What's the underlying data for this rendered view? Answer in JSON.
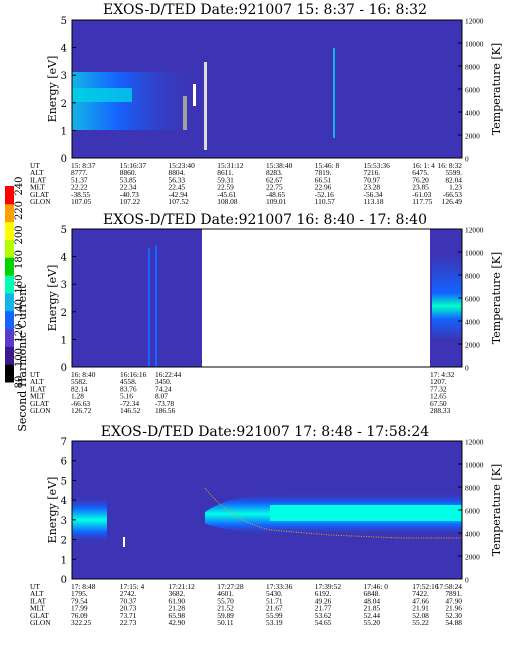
{
  "colors": {
    "background": "#3c34b4",
    "colorbar": [
      "#000000",
      "#3a1a8c",
      "#5a3cc8",
      "#1464ff",
      "#14b4e6",
      "#00ffb4",
      "#00d200",
      "#b4ff00",
      "#ffff00",
      "#ffa000",
      "#ff0000"
    ]
  },
  "colorbar": {
    "label": "Second Harmonic Current",
    "ticks": [
      "80",
      "100",
      "120",
      "140",
      "160",
      "180",
      "200",
      "220",
      "240"
    ]
  },
  "chart_data": [
    {
      "type": "heatmap",
      "title": "EXOS-D/TED   Date:921007  15: 8:37 - 16: 8:32",
      "ylabel": "Energy [eV]",
      "y2label": "Temperature [K]",
      "ylim": [
        0,
        5
      ],
      "y2lim": [
        0,
        12000
      ],
      "yticks": [
        "0",
        "1",
        "2",
        "3",
        "4",
        "5"
      ],
      "y2ticks": [
        "0",
        "2000",
        "4000",
        "6000",
        "8000",
        "10000",
        "12000"
      ],
      "ephemeris_labels": [
        "UT",
        "ALT",
        "ILAT",
        "MLT",
        "GLAT",
        "GLON"
      ],
      "ephemeris": [
        [
          "15: 8:37",
          "15:16:37",
          "15:23:40",
          "15:31:12",
          "15:38:40",
          "15:46: 8",
          "15:53:36",
          "16: 1: 4",
          "16: 8:32"
        ],
        [
          "8777.",
          "8860.",
          "8804.",
          "8611.",
          "8283.",
          "7819.",
          "7216.",
          "6475.",
          "5599."
        ],
        [
          "51.37",
          "53.85",
          "56.33",
          "59.31",
          "62.67",
          "66.51",
          "70.97",
          "76.20",
          "82.04"
        ],
        [
          "22.22",
          "22.34",
          "22.45",
          "22.59",
          "22.75",
          "22.96",
          "23.28",
          "23.85",
          "1.23"
        ],
        [
          "-38.55",
          "-40.73",
          "-42.94",
          "-45.61",
          "-48.65",
          "-52.16",
          "-56.34",
          "-61.03",
          "-66.53"
        ],
        [
          "107.05",
          "107.22",
          "107.52",
          "108.08",
          "109.01",
          "110.57",
          "113.18",
          "117.75",
          "126.49"
        ]
      ]
    },
    {
      "type": "heatmap",
      "title": "EXOS-D/TED   Date:921007  16: 8:40 - 17: 8:40",
      "ylabel": "Energy [eV]",
      "y2label": "Temperature [K]",
      "ylim": [
        0,
        5
      ],
      "y2lim": [
        0,
        12000
      ],
      "yticks": [
        "0",
        "1",
        "2",
        "3",
        "4",
        "5"
      ],
      "y2ticks": [
        "0",
        "2000",
        "4000",
        "6000",
        "8000",
        "10000",
        "12000"
      ],
      "ephemeris_labels": [
        "UT",
        "ALT",
        "ILAT",
        "MLT",
        "GLAT",
        "GLON"
      ],
      "ephemeris": [
        [
          "16: 8:40",
          "16:16:16",
          "16:22:44",
          "17: 4:32"
        ],
        [
          "5582.",
          "4558.",
          "3450.",
          "1207."
        ],
        [
          "82.14",
          "83.76",
          "74.24",
          "77.32"
        ],
        [
          "1.28",
          "5.16",
          "8.07",
          "12.65"
        ],
        [
          "-66.63",
          "-72.34",
          "-73.78",
          "67.50"
        ],
        [
          "126.72",
          "146.52",
          "186.56",
          "288.33"
        ]
      ]
    },
    {
      "type": "heatmap",
      "title": "EXOS-D/TED   Date:921007  17: 8:48 - 17:58:24",
      "ylabel": "Energy [eV]",
      "y2label": "Temperature [K]",
      "ylim": [
        0,
        7
      ],
      "y2lim": [
        0,
        12000
      ],
      "yticks": [
        "0",
        "1",
        "2",
        "3",
        "4",
        "5",
        "6",
        "7"
      ],
      "y2ticks": [
        "0",
        "2000",
        "4000",
        "6000",
        "8000",
        "10000",
        "12000"
      ],
      "ephemeris_labels": [
        "UT",
        "ALT",
        "ILAT",
        "MLT",
        "GLAT",
        "GLON"
      ],
      "ephemeris": [
        [
          "17: 8:48",
          "17:15: 4",
          "17:21:12",
          "17:27:28",
          "17:33:36",
          "17:39:52",
          "17:46: 0",
          "17:52:16",
          "17:58:24"
        ],
        [
          "1795.",
          "2742.",
          "3682.",
          "4601.",
          "5430.",
          "6192.",
          "6848.",
          "7422.",
          "7891."
        ],
        [
          "79.54",
          "70.37",
          "61.90",
          "55.70",
          "51.71",
          "49.26",
          "48.04",
          "47.66",
          "47.90"
        ],
        [
          "17.99",
          "20.73",
          "21.28",
          "21.52",
          "21.67",
          "21.77",
          "21.85",
          "21.91",
          "21.96"
        ],
        [
          "76.09",
          "73.71",
          "65.98",
          "59.89",
          "55.99",
          "53.62",
          "52.44",
          "52.08",
          "52.30"
        ],
        [
          "322.25",
          "22.73",
          "42.90",
          "50.11",
          "53.19",
          "54.65",
          "55.20",
          "55.22",
          "54.88"
        ]
      ]
    }
  ]
}
